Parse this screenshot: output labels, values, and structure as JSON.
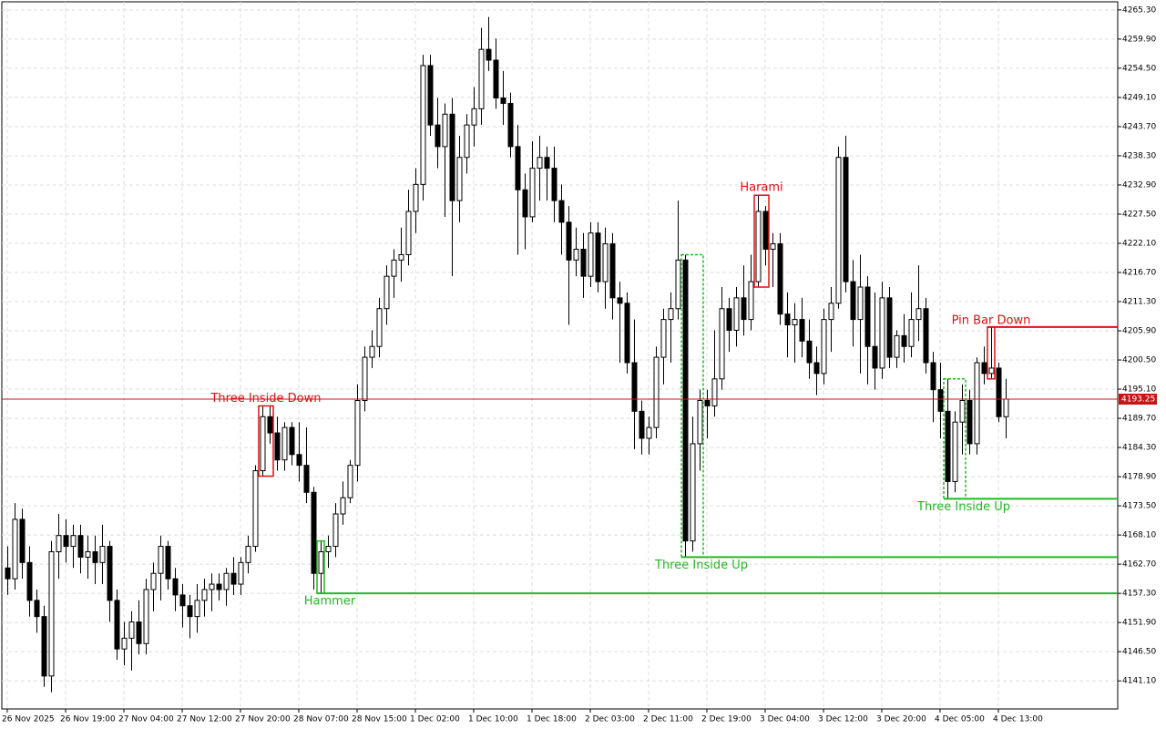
{
  "chart_data": {
    "type": "candlestick",
    "categories": [
      "26 Nov 2025",
      null,
      null,
      null,
      null,
      null,
      null,
      null,
      "26 Nov 19:00",
      null,
      null,
      null,
      null,
      null,
      null,
      null,
      "27 Nov 04:00",
      null,
      null,
      null,
      null,
      null,
      null,
      null,
      "27 Nov 12:00",
      null,
      null,
      null,
      null,
      null,
      null,
      null,
      "27 Nov 20:00",
      null,
      null,
      null,
      null,
      null,
      null,
      null,
      "28 Nov 07:00",
      null,
      null,
      null,
      null,
      null,
      null,
      null,
      "28 Nov 15:00",
      null,
      null,
      null,
      null,
      null,
      null,
      null,
      "1 Dec 02:00",
      null,
      null,
      null,
      null,
      null,
      null,
      null,
      "1 Dec 10:00",
      null,
      null,
      null,
      null,
      null,
      null,
      null,
      "1 Dec 18:00",
      null,
      null,
      null,
      null,
      null,
      null,
      null,
      "2 Dec 03:00",
      null,
      null,
      null,
      null,
      null,
      null,
      null,
      "2 Dec 11:00",
      null,
      null,
      null,
      null,
      null,
      null,
      null,
      "2 Dec 19:00",
      null,
      null,
      null,
      null,
      null,
      null,
      null,
      "3 Dec 04:00",
      null,
      null,
      null,
      null,
      null,
      null,
      null,
      "3 Dec 12:00",
      null,
      null,
      null,
      null,
      null,
      null,
      null,
      "3 Dec 20:00",
      null,
      null,
      null,
      null,
      null,
      null,
      null,
      "4 Dec 05:00",
      null,
      null,
      null,
      null,
      null,
      null,
      null,
      "4 Dec 13:00",
      null
    ],
    "ohlc": [
      [
        4162,
        4166,
        4157,
        4160
      ],
      [
        4160,
        4174,
        4158,
        4171
      ],
      [
        4171,
        4173,
        4160,
        4163
      ],
      [
        4163,
        4166,
        4153,
        4156
      ],
      [
        4156,
        4158,
        4150,
        4153
      ],
      [
        4153,
        4155,
        4140,
        4142
      ],
      [
        4142,
        4167,
        4139,
        4165
      ],
      [
        4165,
        4172,
        4160,
        4168
      ],
      [
        4168,
        4171,
        4163,
        4166
      ],
      [
        4166,
        4170,
        4162,
        4168
      ],
      [
        4168,
        4170,
        4161,
        4164
      ],
      [
        4164,
        4168,
        4160,
        4165
      ],
      [
        4165,
        4168,
        4159,
        4163
      ],
      [
        4163,
        4170,
        4159,
        4166
      ],
      [
        4166,
        4167,
        4152,
        4156
      ],
      [
        4156,
        4158,
        4145,
        4147
      ],
      [
        4147,
        4152,
        4144,
        4149
      ],
      [
        4149,
        4154,
        4143,
        4152
      ],
      [
        4152,
        4156,
        4146,
        4148
      ],
      [
        4148,
        4160,
        4146,
        4158
      ],
      [
        4158,
        4163,
        4154,
        4161
      ],
      [
        4161,
        4168,
        4156,
        4166
      ],
      [
        4166,
        4167,
        4158,
        4160
      ],
      [
        4160,
        4162,
        4154,
        4157
      ],
      [
        4157,
        4159,
        4151,
        4155
      ],
      [
        4155,
        4157,
        4149,
        4153
      ],
      [
        4153,
        4159,
        4150,
        4156
      ],
      [
        4156,
        4160,
        4153,
        4158
      ],
      [
        4158,
        4161,
        4154,
        4159
      ],
      [
        4159,
        4161,
        4156,
        4158
      ],
      [
        4158,
        4162,
        4155,
        4161
      ],
      [
        4161,
        4164,
        4157,
        4159
      ],
      [
        4159,
        4164,
        4157,
        4163
      ],
      [
        4163,
        4168,
        4161,
        4166
      ],
      [
        4166,
        4181,
        4165,
        4180
      ],
      [
        4180,
        4192,
        4179,
        4190
      ],
      [
        4190,
        4192,
        4185,
        4187
      ],
      [
        4187,
        4190,
        4180,
        4182
      ],
      [
        4182,
        4189,
        4180,
        4188
      ],
      [
        4188,
        4189,
        4181,
        4183
      ],
      [
        4183,
        4189,
        4178,
        4181
      ],
      [
        4181,
        4188,
        4174,
        4176
      ],
      [
        4176,
        4177,
        4158,
        4161
      ],
      [
        4161,
        4167,
        4157.3,
        4165
      ],
      [
        4165,
        4168,
        4162,
        4166
      ],
      [
        4166,
        4174,
        4164,
        4172
      ],
      [
        4172,
        4178,
        4170,
        4175
      ],
      [
        4175,
        4182,
        4174,
        4181
      ],
      [
        4181,
        4196,
        4178,
        4193
      ],
      [
        4193,
        4203,
        4191,
        4201
      ],
      [
        4201,
        4206,
        4199,
        4203
      ],
      [
        4203,
        4212,
        4201,
        4210
      ],
      [
        4210,
        4218,
        4207,
        4216
      ],
      [
        4216,
        4221,
        4212,
        4219
      ],
      [
        4219,
        4225,
        4215,
        4220
      ],
      [
        4220,
        4232,
        4218,
        4228
      ],
      [
        4228,
        4236,
        4224,
        4233
      ],
      [
        4233,
        4257,
        4230,
        4255
      ],
      [
        4255,
        4257,
        4242,
        4244
      ],
      [
        4244,
        4249,
        4236,
        4240
      ],
      [
        4240,
        4248,
        4227,
        4246
      ],
      [
        4246,
        4249,
        4216,
        4230
      ],
      [
        4230,
        4242,
        4226,
        4238
      ],
      [
        4238,
        4246,
        4235,
        4244
      ],
      [
        4244,
        4251,
        4240,
        4247
      ],
      [
        4247,
        4262,
        4244,
        4258
      ],
      [
        4258,
        4264,
        4254,
        4256
      ],
      [
        4256,
        4260,
        4247,
        4249
      ],
      [
        4249,
        4254,
        4244,
        4248
      ],
      [
        4248,
        4250,
        4238,
        4240
      ],
      [
        4240,
        4244,
        4220,
        4232
      ],
      [
        4232,
        4235,
        4221,
        4227
      ],
      [
        4227,
        4241,
        4226,
        4236
      ],
      [
        4236,
        4242,
        4230,
        4238
      ],
      [
        4238,
        4240,
        4230,
        4236
      ],
      [
        4236,
        4240,
        4226,
        4230
      ],
      [
        4230,
        4233,
        4220,
        4226
      ],
      [
        4226,
        4229,
        4207,
        4219
      ],
      [
        4219,
        4225,
        4216,
        4221
      ],
      [
        4221,
        4224,
        4212,
        4216
      ],
      [
        4216,
        4226,
        4214,
        4224
      ],
      [
        4224,
        4226,
        4213,
        4215
      ],
      [
        4215,
        4225,
        4210,
        4222
      ],
      [
        4222,
        4224,
        4208,
        4212
      ],
      [
        4212,
        4215,
        4200,
        4211
      ],
      [
        4211,
        4213,
        4198,
        4200
      ],
      [
        4200,
        4208,
        4184,
        4191
      ],
      [
        4191,
        4193,
        4183,
        4186
      ],
      [
        4186,
        4190,
        4183,
        4188
      ],
      [
        4188,
        4203,
        4186,
        4201
      ],
      [
        4201,
        4210,
        4196,
        4208
      ],
      [
        4208,
        4213,
        4200,
        4210
      ],
      [
        4210,
        4230,
        4208,
        4219
      ],
      [
        4219,
        4220,
        4164,
        4167
      ],
      [
        4167,
        4190,
        4165,
        4185
      ],
      [
        4185,
        4195,
        4180,
        4193
      ],
      [
        4193,
        4195,
        4186,
        4192
      ],
      [
        4192,
        4206,
        4190,
        4197
      ],
      [
        4197,
        4214,
        4195,
        4210
      ],
      [
        4210,
        4212,
        4202,
        4206
      ],
      [
        4206,
        4214,
        4203,
        4212
      ],
      [
        4212,
        4218,
        4205,
        4208
      ],
      [
        4208,
        4220,
        4206,
        4215
      ],
      [
        4215,
        4231,
        4214,
        4228
      ],
      [
        4228,
        4229,
        4218,
        4221
      ],
      [
        4221,
        4224,
        4214,
        4222
      ],
      [
        4222,
        4224,
        4207,
        4209
      ],
      [
        4209,
        4213,
        4201,
        4207
      ],
      [
        4207,
        4211,
        4200,
        4208
      ],
      [
        4208,
        4212,
        4201,
        4204
      ],
      [
        4204,
        4208,
        4197,
        4200
      ],
      [
        4200,
        4203,
        4194,
        4198
      ],
      [
        4198,
        4210,
        4196,
        4208
      ],
      [
        4208,
        4214,
        4202,
        4211
      ],
      [
        4211,
        4240,
        4210,
        4238
      ],
      [
        4238,
        4242,
        4213,
        4215
      ],
      [
        4215,
        4219,
        4203,
        4208
      ],
      [
        4208,
        4220,
        4198,
        4214
      ],
      [
        4214,
        4216,
        4196,
        4203
      ],
      [
        4203,
        4213,
        4195,
        4199
      ],
      [
        4199,
        4215,
        4197,
        4212
      ],
      [
        4212,
        4214,
        4199,
        4201
      ],
      [
        4201,
        4206,
        4199,
        4205
      ],
      [
        4205,
        4209,
        4200,
        4203
      ],
      [
        4203,
        4213,
        4201,
        4208
      ],
      [
        4208,
        4218,
        4204,
        4210
      ],
      [
        4210,
        4212,
        4198,
        4200
      ],
      [
        4200,
        4202,
        4189,
        4195
      ],
      [
        4195,
        4200,
        4186,
        4191
      ],
      [
        4191,
        4197,
        4174.8,
        4178
      ],
      [
        4178,
        4191,
        4176,
        4189
      ],
      [
        4189,
        4196,
        4183,
        4193
      ],
      [
        4193,
        4195,
        4183,
        4185
      ],
      [
        4185,
        4201,
        4183,
        4200
      ],
      [
        4200,
        4203,
        4196,
        4198
      ],
      [
        4198,
        4206.6,
        4197,
        4199
      ],
      [
        4199,
        4200,
        4189,
        4190
      ],
      [
        4190,
        4197,
        4186,
        4193.25
      ]
    ],
    "ylim": [
      4135.9,
      4266.8
    ],
    "yticks": [
      {
        "value": 4265.3,
        "label": "4265.30"
      },
      {
        "value": 4259.9,
        "label": "4259.90"
      },
      {
        "value": 4254.5,
        "label": "4254.50"
      },
      {
        "value": 4249.1,
        "label": "4249.10"
      },
      {
        "value": 4243.7,
        "label": "4243.70"
      },
      {
        "value": 4238.3,
        "label": "4238.30"
      },
      {
        "value": 4232.9,
        "label": "4232.90"
      },
      {
        "value": 4227.5,
        "label": "4227.50"
      },
      {
        "value": 4222.1,
        "label": "4222.10"
      },
      {
        "value": 4216.7,
        "label": "4216.70"
      },
      {
        "value": 4211.3,
        "label": "4211.30"
      },
      {
        "value": 4205.9,
        "label": "4205.90"
      },
      {
        "value": 4200.5,
        "label": "4200.50"
      },
      {
        "value": 4195.1,
        "label": "4195.10"
      },
      {
        "value": 4189.7,
        "label": "4189.70"
      },
      {
        "value": 4184.3,
        "label": "4184.30"
      },
      {
        "value": 4178.9,
        "label": "4178.90"
      },
      {
        "value": 4173.5,
        "label": "4173.50"
      },
      {
        "value": 4168.1,
        "label": "4168.10"
      },
      {
        "value": 4162.7,
        "label": "4162.70"
      },
      {
        "value": 4157.3,
        "label": "4157.30"
      },
      {
        "value": 4151.9,
        "label": "4151.90"
      },
      {
        "value": 4146.5,
        "label": "4146.50"
      },
      {
        "value": 4141.1,
        "label": "4141.10"
      }
    ],
    "grid": true,
    "current_price": 4193.25,
    "current_price_color": "#c81414",
    "patterns": [
      {
        "label": "Three Inside Down",
        "color": "#e01010",
        "candles": [
          35,
          36
        ]
      },
      {
        "label": "Hammer",
        "color": "#22b822",
        "candles": [
          43,
          43
        ],
        "level": 4157.3
      },
      {
        "label": "Three Inside Up",
        "color": "#22b822",
        "candles": [
          93,
          95
        ],
        "level": 4164
      },
      {
        "label": "Harami",
        "color": "#e01010",
        "candles": [
          103,
          104
        ]
      },
      {
        "label": "Three Inside Up",
        "color": "#22b822",
        "candles": [
          129,
          131
        ],
        "level": 4174.8
      },
      {
        "label": "Pin Bar Down",
        "color": "#e01010",
        "candles": [
          135,
          135
        ],
        "level": 4206.6
      }
    ]
  }
}
